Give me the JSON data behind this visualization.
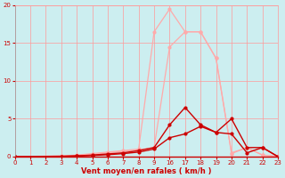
{
  "background_color": "#cceef0",
  "grid_color": "#ff9999",
  "line_color_light": "#ffaaaa",
  "line_color_dark": "#cc0000",
  "xlabel": "Vent moyen/en rafales ( km/h )",
  "xlabel_color": "#cc0000",
  "ylim": [
    0,
    20
  ],
  "xtick_labels": [
    "0",
    "1",
    "2",
    "3",
    "4",
    "5",
    "6",
    "7",
    "8",
    "9",
    "16",
    "17",
    "18",
    "19",
    "20",
    "21",
    "22",
    "23"
  ],
  "xtick_vals": [
    0,
    1,
    2,
    3,
    4,
    5,
    6,
    7,
    8,
    9,
    10,
    11,
    12,
    13,
    14,
    15,
    16,
    17
  ],
  "yticks": [
    0,
    5,
    10,
    15,
    20
  ],
  "series": [
    {
      "xreal": [
        0,
        3,
        4,
        5,
        6,
        7,
        8,
        9,
        16,
        17,
        18,
        19,
        20,
        21,
        22,
        23
      ],
      "xpos": [
        0,
        3,
        4,
        5,
        6,
        7,
        8,
        9,
        10,
        11,
        12,
        13,
        14,
        15,
        16,
        17
      ],
      "y": [
        0,
        0.1,
        0.2,
        0.4,
        0.6,
        0.8,
        1.0,
        16.5,
        19.5,
        16.5,
        16.5,
        13.0,
        0.5,
        1.2,
        0.2,
        0.0
      ],
      "color": "#ffaaaa",
      "lw": 0.9,
      "ms": 2.0
    },
    {
      "xpos": [
        0,
        3,
        4,
        5,
        6,
        7,
        8,
        9,
        10,
        11,
        12,
        13,
        14,
        15,
        16,
        17
      ],
      "y": [
        0,
        0.05,
        0.15,
        0.3,
        0.5,
        0.7,
        0.9,
        1.2,
        14.5,
        16.5,
        16.5,
        13.0,
        0.4,
        1.2,
        0.2,
        0.0
      ],
      "color": "#ffaaaa",
      "lw": 0.9,
      "ms": 2.0
    },
    {
      "xpos": [
        0,
        3,
        4,
        5,
        6,
        7,
        8,
        9,
        10,
        11,
        12,
        13,
        14,
        15,
        16,
        17
      ],
      "y": [
        0,
        0.05,
        0.1,
        0.2,
        0.35,
        0.5,
        0.8,
        1.2,
        4.2,
        6.5,
        4.2,
        3.2,
        5.0,
        1.2,
        1.2,
        0.0
      ],
      "color": "#cc0000",
      "lw": 1.0,
      "ms": 2.0
    },
    {
      "xpos": [
        0,
        3,
        4,
        5,
        6,
        7,
        8,
        9,
        10,
        11,
        12,
        13,
        14,
        15,
        16,
        17
      ],
      "y": [
        0,
        0.03,
        0.08,
        0.15,
        0.25,
        0.4,
        0.6,
        1.0,
        2.5,
        3.0,
        4.0,
        3.2,
        3.0,
        0.5,
        1.2,
        0.0
      ],
      "color": "#cc0000",
      "lw": 1.0,
      "ms": 2.0
    }
  ]
}
